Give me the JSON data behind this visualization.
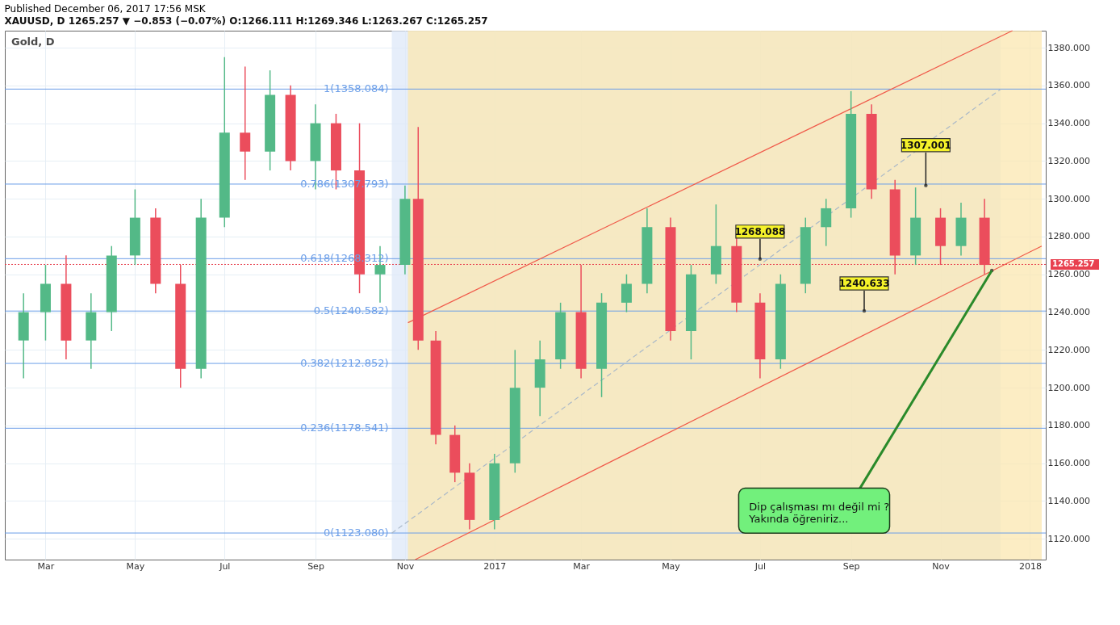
{
  "chart_data": {
    "type": "candlestick",
    "title": "Published December 06, 2017 17:56 MSK",
    "subtitle": "XAUUSD, D 1265.257 ▼ −0.853 (−0.07%) O:1266.111 H:1269.346 L:1263.267 C:1265.257",
    "x": [
      "2016-02-15",
      "2016-03-01",
      "2016-03-15",
      "2016-04-01",
      "2016-04-15",
      "2016-05-01",
      "2016-05-15",
      "2016-06-01",
      "2016-06-15",
      "2016-07-01",
      "2016-07-15",
      "2016-08-01",
      "2016-08-15",
      "2016-09-01",
      "2016-09-15",
      "2016-10-01",
      "2016-10-15",
      "2016-11-01",
      "2016-11-10",
      "2016-11-22",
      "2016-12-05",
      "2016-12-15",
      "2017-01-01",
      "2017-01-15",
      "2017-02-01",
      "2017-02-15",
      "2017-03-01",
      "2017-03-15",
      "2017-04-01",
      "2017-04-15",
      "2017-05-01",
      "2017-05-15",
      "2017-06-01",
      "2017-06-15",
      "2017-07-01",
      "2017-07-15",
      "2017-08-01",
      "2017-08-15",
      "2017-09-01",
      "2017-09-15",
      "2017-10-01",
      "2017-10-15",
      "2017-11-01",
      "2017-11-15",
      "2017-12-01"
    ],
    "ohlc": [
      [
        1225,
        1250,
        1205,
        1240
      ],
      [
        1240,
        1265,
        1225,
        1255
      ],
      [
        1255,
        1270,
        1215,
        1225
      ],
      [
        1225,
        1250,
        1210,
        1240
      ],
      [
        1240,
        1275,
        1230,
        1270
      ],
      [
        1270,
        1305,
        1265,
        1290
      ],
      [
        1290,
        1295,
        1250,
        1255
      ],
      [
        1255,
        1265,
        1200,
        1210
      ],
      [
        1210,
        1300,
        1205,
        1290
      ],
      [
        1290,
        1375,
        1285,
        1335
      ],
      [
        1335,
        1370,
        1310,
        1325
      ],
      [
        1325,
        1368,
        1315,
        1355
      ],
      [
        1355,
        1360,
        1315,
        1320
      ],
      [
        1320,
        1350,
        1305,
        1340
      ],
      [
        1340,
        1345,
        1305,
        1315
      ],
      [
        1315,
        1340,
        1250,
        1260
      ],
      [
        1260,
        1275,
        1245,
        1265
      ],
      [
        1265,
        1307,
        1260,
        1300
      ],
      [
        1300,
        1338,
        1220,
        1225
      ],
      [
        1225,
        1230,
        1170,
        1175
      ],
      [
        1175,
        1180,
        1150,
        1155
      ],
      [
        1155,
        1160,
        1125,
        1130
      ],
      [
        1130,
        1165,
        1125,
        1160
      ],
      [
        1160,
        1220,
        1155,
        1200
      ],
      [
        1200,
        1225,
        1185,
        1215
      ],
      [
        1215,
        1245,
        1210,
        1240
      ],
      [
        1240,
        1265,
        1205,
        1210
      ],
      [
        1210,
        1250,
        1195,
        1245
      ],
      [
        1245,
        1260,
        1240,
        1255
      ],
      [
        1255,
        1295,
        1250,
        1285
      ],
      [
        1285,
        1290,
        1225,
        1230
      ],
      [
        1230,
        1265,
        1215,
        1260
      ],
      [
        1260,
        1297,
        1255,
        1275
      ],
      [
        1275,
        1280,
        1240,
        1245
      ],
      [
        1245,
        1250,
        1205,
        1215
      ],
      [
        1215,
        1260,
        1210,
        1255
      ],
      [
        1255,
        1290,
        1250,
        1285
      ],
      [
        1285,
        1300,
        1275,
        1295
      ],
      [
        1295,
        1357,
        1290,
        1345
      ],
      [
        1345,
        1350,
        1300,
        1305
      ],
      [
        1305,
        1310,
        1260,
        1270
      ],
      [
        1270,
        1306,
        1265,
        1290
      ],
      [
        1290,
        1295,
        1265,
        1275
      ],
      [
        1275,
        1298,
        1270,
        1290
      ],
      [
        1290,
        1300,
        1260,
        1265
      ]
    ],
    "colors": [
      "#53b987",
      "#53b987",
      "#eb4d5c",
      "#53b987",
      "#53b987",
      "#53b987",
      "#eb4d5c",
      "#eb4d5c",
      "#53b987",
      "#53b987",
      "#eb4d5c",
      "#53b987",
      "#eb4d5c",
      "#53b987",
      "#eb4d5c",
      "#eb4d5c",
      "#53b987",
      "#53b987",
      "#eb4d5c",
      "#eb4d5c",
      "#eb4d5c",
      "#eb4d5c",
      "#53b987",
      "#53b987",
      "#53b987",
      "#53b987",
      "#eb4d5c",
      "#53b987",
      "#53b987",
      "#53b987",
      "#eb4d5c",
      "#53b987",
      "#53b987",
      "#eb4d5c",
      "#eb4d5c",
      "#53b987",
      "#53b987",
      "#53b987",
      "#53b987",
      "#eb4d5c",
      "#eb4d5c",
      "#53b987",
      "#eb4d5c",
      "#53b987",
      "#eb4d5c"
    ],
    "series": [
      {
        "type": "line",
        "color": "#f05a4a",
        "line_style": "solid",
        "x": [
          "2016-11-03",
          "2017-12-20"
        ],
        "values": [
          1234.4,
          1389
        ]
      },
      {
        "type": "line",
        "color": "#f05a4a",
        "line_style": "solid",
        "x": [
          "2016-11-08",
          "2018-01-09"
        ],
        "values": [
          1109,
          1275
        ]
      },
      {
        "type": "line",
        "color": "#a9b8c8",
        "line_style": "dashed",
        "x": [
          "2016-10-23",
          "2017-12-12"
        ],
        "values": [
          1123,
          1358
        ]
      }
    ],
    "xlim": [
      "2016-02-05",
      "2018-01-09"
    ],
    "xticks": [
      {
        "value": "2016-03-01",
        "label": "Mar"
      },
      {
        "value": "2016-05-01",
        "label": "May"
      },
      {
        "value": "2016-07-01",
        "label": "Jul"
      },
      {
        "value": "2016-09-01",
        "label": "Sep"
      },
      {
        "value": "2016-11-01",
        "label": "Nov"
      },
      {
        "value": "2017-01-01",
        "label": "2017"
      },
      {
        "value": "2017-03-01",
        "label": "Mar"
      },
      {
        "value": "2017-05-01",
        "label": "May"
      },
      {
        "value": "2017-07-01",
        "label": "Jul"
      },
      {
        "value": "2017-09-01",
        "label": "Sep"
      },
      {
        "value": "2017-11-01",
        "label": "Nov"
      },
      {
        "value": "2018-01-01",
        "label": "2018"
      }
    ],
    "ylim": [
      1109,
      1389
    ],
    "yticks": [
      {
        "value": 1120,
        "label": "1120.000"
      },
      {
        "value": 1140,
        "label": "1140.000"
      },
      {
        "value": 1160,
        "label": "1160.000"
      },
      {
        "value": 1180,
        "label": "1180.000"
      },
      {
        "value": 1200,
        "label": "1200.000"
      },
      {
        "value": 1220,
        "label": "1220.000"
      },
      {
        "value": 1240,
        "label": "1240.000"
      },
      {
        "value": 1260,
        "label": "1260.000"
      },
      {
        "value": 1280,
        "label": "1280.000"
      },
      {
        "value": 1300,
        "label": "1300.000"
      },
      {
        "value": 1320,
        "label": "1320.000"
      },
      {
        "value": 1340,
        "label": "1340.000"
      },
      {
        "value": 1360,
        "label": "1360.000"
      },
      {
        "value": 1380,
        "label": "1380.000"
      }
    ],
    "bands": [
      {
        "axis": "x",
        "from": "2016-10-23",
        "to": "2017-12-12",
        "color": "#dde8f8"
      },
      {
        "axis": "x",
        "from": "2016-11-03",
        "to": "2018-01-09",
        "color": "#fbe7b0"
      }
    ],
    "ref_lines": [
      {
        "axis": "y",
        "value": 1358.084,
        "label": "1(1358.084)",
        "color": "#6b9ee8"
      },
      {
        "axis": "y",
        "value": 1307.793,
        "label": "0.786(1307.793)",
        "color": "#6b9ee8"
      },
      {
        "axis": "y",
        "value": 1268.312,
        "label": "0.618(1268.312)",
        "color": "#6b9ee8"
      },
      {
        "axis": "y",
        "value": 1240.582,
        "label": "0.5(1240.582)",
        "color": "#6b9ee8"
      },
      {
        "axis": "y",
        "value": 1212.852,
        "label": "0.382(1212.852)",
        "color": "#6b9ee8"
      },
      {
        "axis": "y",
        "value": 1178.541,
        "label": "0.236(1178.541)",
        "color": "#6b9ee8"
      },
      {
        "axis": "y",
        "value": 1123.08,
        "label": "0(1123.080)",
        "color": "#6b9ee8"
      },
      {
        "axis": "y",
        "value": 1265.257,
        "label": "1265.257",
        "color": "#e8404f",
        "line_style": "dotted"
      }
    ],
    "annotations": [
      "Gold, D",
      {
        "text": "1268.088",
        "x": "2017-07-01",
        "y": 1268.088
      },
      {
        "text": "1307.001",
        "x": "2017-10-22",
        "y": 1307.001
      },
      {
        "text": "1240.633",
        "x": "2017-09-10",
        "y": 1240.633
      },
      {
        "text": "Dip çalışması mı değil mi ?\nYakında öğreniriz...",
        "x": "2017-12-06",
        "y": 1262
      }
    ],
    "grid": true
  }
}
